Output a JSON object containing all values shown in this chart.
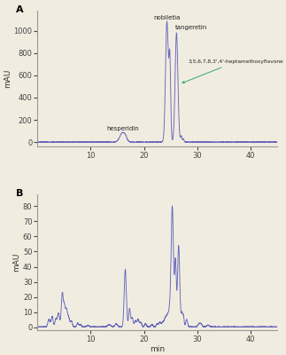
{
  "background_color": "#f0ece0",
  "line_color": "#6666bb",
  "panel_A": {
    "label": "A",
    "ylabel": "mAU",
    "xlim": [
      0,
      45
    ],
    "ylim": [
      -40,
      1180
    ],
    "yticks": [
      0,
      200,
      400,
      600,
      800,
      1000
    ],
    "xticks": [
      10,
      20,
      30,
      40
    ],
    "hesperidin_label": "hesperidin",
    "nobiletia_label": "nobiletia",
    "tangeretin_label": "tangeretin",
    "heptamethoxy_label": "3,5,6,7,8,3',4'-heptamethoxyflavone"
  },
  "panel_B": {
    "label": "B",
    "ylabel": "mAU",
    "xlabel": "min",
    "xlim": [
      0,
      45
    ],
    "ylim": [
      -2,
      88
    ],
    "yticks": [
      0,
      10,
      20,
      30,
      40,
      50,
      60,
      70,
      80
    ],
    "xticks": [
      10,
      20,
      30,
      40
    ]
  }
}
